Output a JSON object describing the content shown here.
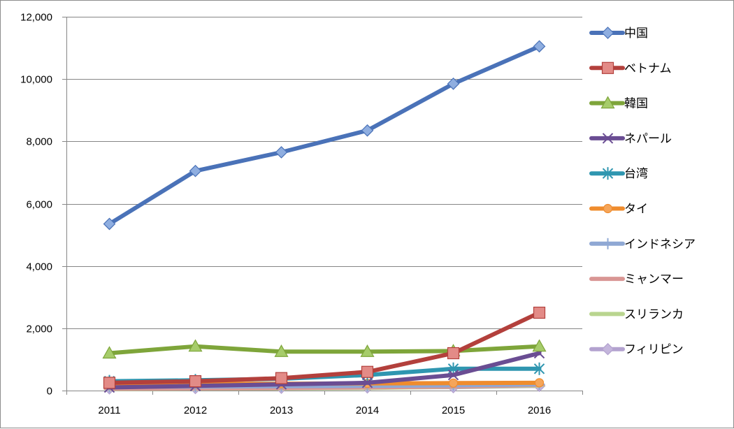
{
  "chart_data": {
    "type": "line",
    "title": "",
    "xlabel": "",
    "ylabel": "",
    "x": [
      "2011",
      "2012",
      "2013",
      "2014",
      "2015",
      "2016"
    ],
    "ylim": [
      0,
      12000
    ],
    "yticks": [
      0,
      2000,
      4000,
      6000,
      8000,
      10000,
      12000
    ],
    "ytick_labels": [
      "0",
      "2,000",
      "4,000",
      "6,000",
      "8,000",
      "10,000",
      "12,000"
    ],
    "grid": "horizontal",
    "legend_position": "right",
    "series": [
      {
        "name": "中国",
        "color": "#4a72b8",
        "marker": "diamond",
        "marker_fill": "#8faee0",
        "values": [
          5350,
          7050,
          7650,
          8350,
          9850,
          11050
        ]
      },
      {
        "name": "ベトナム",
        "color": "#b3403c",
        "marker": "square",
        "marker_fill": "#e38b87",
        "values": [
          250,
          300,
          400,
          600,
          1200,
          2500
        ]
      },
      {
        "name": "韓国",
        "color": "#7ea53a",
        "marker": "triangle",
        "marker_fill": "#a6cc6a",
        "values": [
          1200,
          1420,
          1250,
          1250,
          1270,
          1420
        ]
      },
      {
        "name": "ネパール",
        "color": "#6a4d93",
        "marker": "x",
        "marker_fill": "#6a4d93",
        "values": [
          100,
          150,
          200,
          250,
          500,
          1200
        ]
      },
      {
        "name": "台湾",
        "color": "#2f96b0",
        "marker": "star",
        "marker_fill": "#2f96b0",
        "values": [
          300,
          330,
          380,
          500,
          700,
          700
        ]
      },
      {
        "name": "タイ",
        "color": "#ef8c2d",
        "marker": "circle",
        "marker_fill": "#f5a55a",
        "values": [
          200,
          220,
          220,
          230,
          240,
          250
        ]
      },
      {
        "name": "インドネシア",
        "color": "#8fa8d4",
        "marker": "plus",
        "marker_fill": "#8fa8d4",
        "values": [
          120,
          130,
          140,
          150,
          170,
          200
        ]
      },
      {
        "name": "ミャンマー",
        "color": "#d99694",
        "marker": "dash",
        "marker_fill": "#d99694",
        "values": [
          60,
          70,
          80,
          100,
          130,
          180
        ]
      },
      {
        "name": "スリランカ",
        "color": "#b9d58f",
        "marker": "dash",
        "marker_fill": "#b9d58f",
        "values": [
          50,
          60,
          70,
          80,
          120,
          160
        ]
      },
      {
        "name": "フィリピン",
        "color": "#b3a2cf",
        "marker": "diamond",
        "marker_fill": "#c4b6dc",
        "values": [
          70,
          80,
          90,
          100,
          110,
          150
        ]
      }
    ]
  }
}
